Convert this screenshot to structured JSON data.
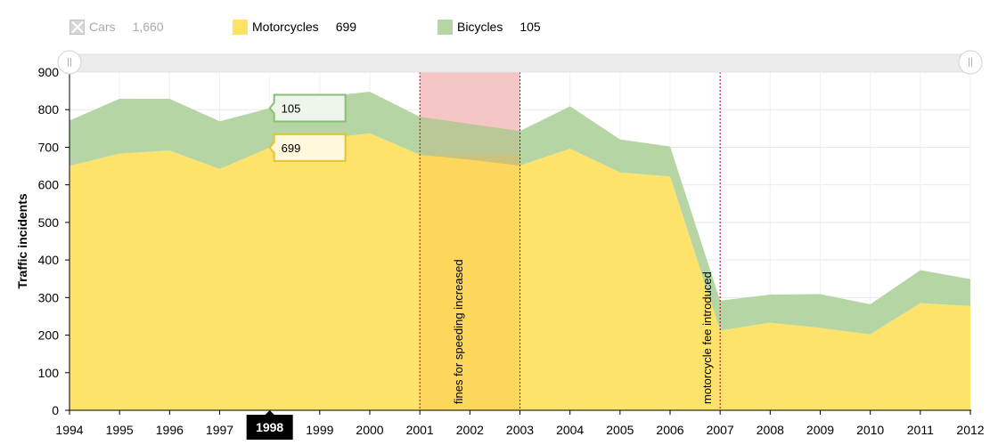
{
  "legend": {
    "items": [
      {
        "name": "Cars",
        "value": "1,660",
        "enabled": false,
        "color": "#d6d6d6"
      },
      {
        "name": "Motorcycles",
        "value": "699",
        "enabled": true,
        "color": "#fee266"
      },
      {
        "name": "Bicycles",
        "value": "105",
        "enabled": true,
        "color": "#b5d5a4"
      }
    ]
  },
  "colors": {
    "motorcycles_fill": "#fde36c",
    "bicycles_fill": "#b5d5a4",
    "bicycles_line": "#8bbf70",
    "motorcycles_line": "#e8c327",
    "guide_band_fill": "#f5c6c6",
    "band_overlay": "#f8c040",
    "guide_line": "#b00020",
    "cursor_bg": "#000000"
  },
  "scrollbar": {
    "start": 0,
    "end": 1
  },
  "cursor": {
    "year_label": "1998"
  },
  "tooltips": {
    "bicycles": "105",
    "motorcycles": "699"
  },
  "chart_data": {
    "type": "area",
    "stacked": true,
    "x": [
      1994,
      1995,
      1996,
      1997,
      1998,
      1999,
      2000,
      2001,
      2002,
      2003,
      2004,
      2005,
      2006,
      2007,
      2008,
      2009,
      2010,
      2011,
      2012
    ],
    "series": [
      {
        "name": "Cars",
        "hidden": true,
        "values": null
      },
      {
        "name": "Motorcycles",
        "values": [
          650,
          683,
          691,
          642,
          699,
          721,
          737,
          680,
          667,
          651,
          696,
          633,
          622,
          212,
          233,
          219,
          202,
          285,
          277
        ]
      },
      {
        "name": "Bicycles",
        "values": [
          121,
          146,
          138,
          127,
          105,
          112,
          111,
          101,
          95,
          92,
          113,
          88,
          80,
          80,
          75,
          90,
          80,
          88,
          72
        ]
      }
    ],
    "ylabel": "Traffic incidents",
    "ylim": [
      0,
      900
    ],
    "yticks": [
      0,
      100,
      200,
      300,
      400,
      500,
      600,
      700,
      800,
      900
    ],
    "xticks": [
      "1994",
      "1995",
      "1996",
      "1997",
      "1998",
      "1999",
      "2000",
      "2001",
      "2002",
      "2003",
      "2004",
      "2005",
      "2006",
      "2007",
      "2008",
      "2009",
      "2010",
      "2011",
      "2012"
    ],
    "grid": true,
    "legend_position": "top",
    "guides": [
      {
        "type": "band",
        "from": 2001,
        "to": 2003,
        "label": "fines for speeding increased"
      },
      {
        "type": "line",
        "at": 2007,
        "label": "motorcycle fee introduced"
      }
    ]
  }
}
